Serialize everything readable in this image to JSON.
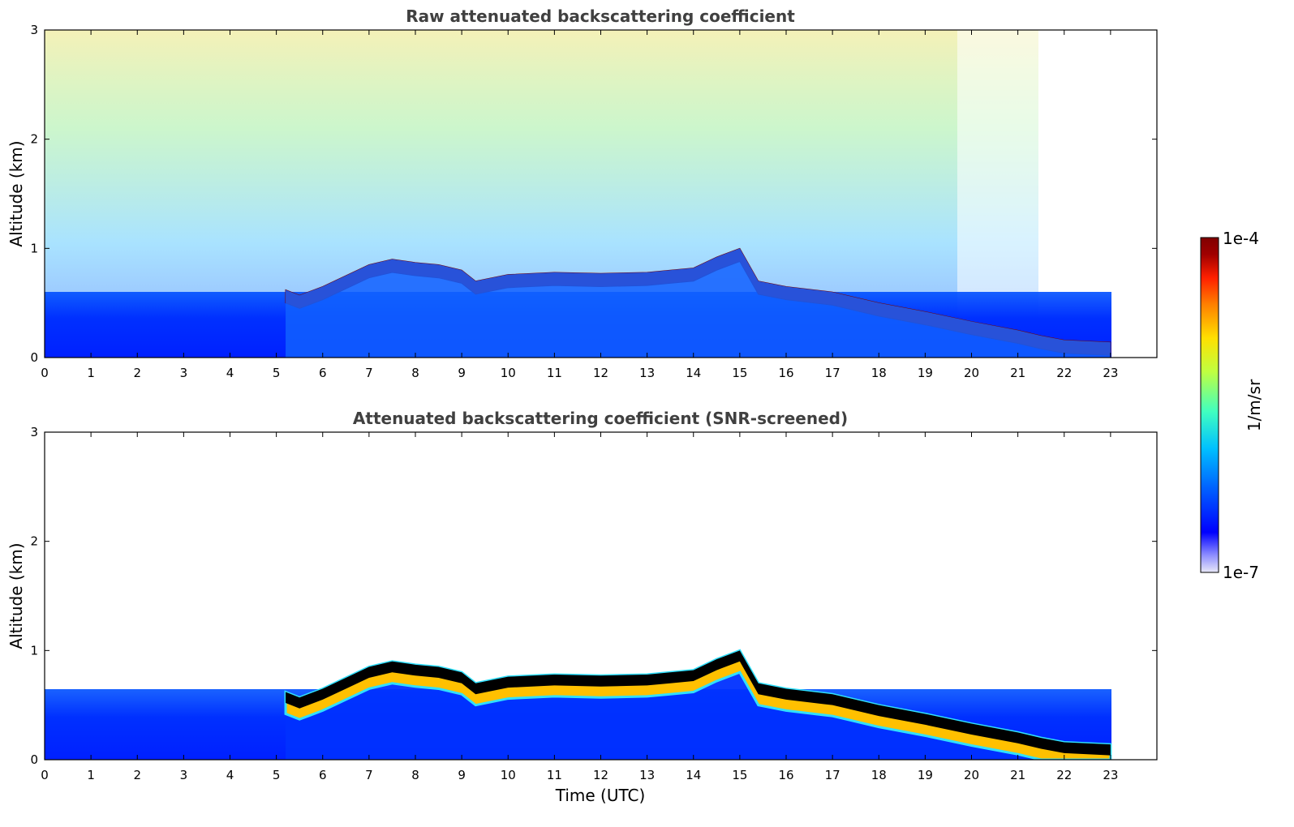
{
  "chart_data": [
    {
      "type": "heatmap",
      "title": "Raw attenuated backscattering coefficient",
      "xlabel": "",
      "ylabel": "Altitude (km)",
      "xlim": [
        0,
        24
      ],
      "ylim": [
        0,
        3
      ],
      "xticks": [
        "0",
        "1",
        "2",
        "3",
        "4",
        "5",
        "6",
        "7",
        "8",
        "9",
        "10",
        "11",
        "12",
        "13",
        "14",
        "15",
        "16",
        "17",
        "18",
        "19",
        "20",
        "21",
        "22",
        "23"
      ],
      "yticks": [
        "0",
        "1",
        "2",
        "3"
      ],
      "grid": false,
      "data_end_hour": 23,
      "layer_top_km": [
        {
          "x": 5.2,
          "y": 0.62
        },
        {
          "x": 5.5,
          "y": 0.57
        },
        {
          "x": 6,
          "y": 0.65
        },
        {
          "x": 6.5,
          "y": 0.75
        },
        {
          "x": 7,
          "y": 0.85
        },
        {
          "x": 7.5,
          "y": 0.9
        },
        {
          "x": 8,
          "y": 0.87
        },
        {
          "x": 8.5,
          "y": 0.85
        },
        {
          "x": 9,
          "y": 0.8
        },
        {
          "x": 9.3,
          "y": 0.7
        },
        {
          "x": 10,
          "y": 0.76
        },
        {
          "x": 11,
          "y": 0.78
        },
        {
          "x": 12,
          "y": 0.77
        },
        {
          "x": 13,
          "y": 0.78
        },
        {
          "x": 13.5,
          "y": 0.8
        },
        {
          "x": 14,
          "y": 0.82
        },
        {
          "x": 14.5,
          "y": 0.92
        },
        {
          "x": 15,
          "y": 1.0
        },
        {
          "x": 15.4,
          "y": 0.7
        },
        {
          "x": 16,
          "y": 0.65
        },
        {
          "x": 17,
          "y": 0.6
        },
        {
          "x": 18,
          "y": 0.5
        },
        {
          "x": 19,
          "y": 0.42
        },
        {
          "x": 20,
          "y": 0.33
        },
        {
          "x": 21,
          "y": 0.25
        },
        {
          "x": 21.5,
          "y": 0.2
        },
        {
          "x": 22,
          "y": 0.16
        },
        {
          "x": 23,
          "y": 0.14
        }
      ]
    },
    {
      "type": "heatmap",
      "title": "Attenuated backscattering coefficient (SNR-screened)",
      "xlabel": "Time (UTC)",
      "ylabel": "Altitude (km)",
      "xlim": [
        0,
        24
      ],
      "ylim": [
        0,
        3
      ],
      "xticks": [
        "0",
        "1",
        "2",
        "3",
        "4",
        "5",
        "6",
        "7",
        "8",
        "9",
        "10",
        "11",
        "12",
        "13",
        "14",
        "15",
        "16",
        "17",
        "18",
        "19",
        "20",
        "21",
        "22",
        "23"
      ],
      "yticks": [
        "0",
        "1",
        "2",
        "3"
      ],
      "grid": false,
      "data_end_hour": 23
    }
  ],
  "colorbar": {
    "label": "1/m/sr",
    "max_label": "1e-4",
    "min_label": "1e-7",
    "scale": "log",
    "colors": [
      "#e8e8f8",
      "#9090ff",
      "#0000ff",
      "#0060ff",
      "#00c0ff",
      "#40ffc0",
      "#c0ff40",
      "#ffe000",
      "#ff8000",
      "#ff2000",
      "#a00000",
      "#800000"
    ]
  }
}
